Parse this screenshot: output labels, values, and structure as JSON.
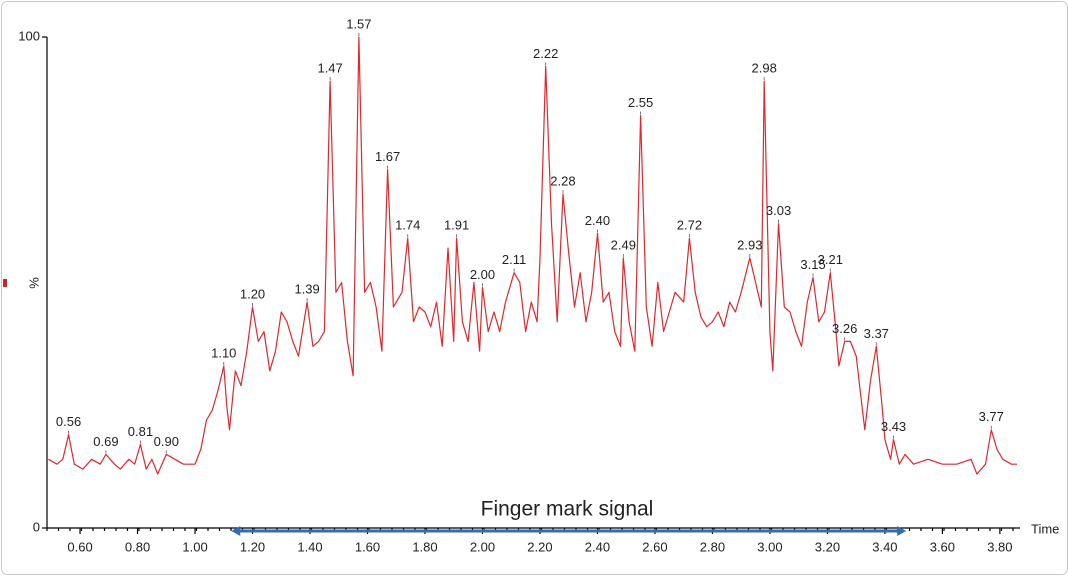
{
  "chart_data": {
    "type": "line",
    "xlabel": "Time",
    "ylabel": "%",
    "xlim": [
      0.485,
      3.87
    ],
    "ylim": [
      0,
      100
    ],
    "yticks": [
      0,
      100
    ],
    "xticks": [
      {
        "value": 0.6,
        "label": "0.60"
      },
      {
        "value": 0.8,
        "label": "0.80"
      },
      {
        "value": 1.0,
        "label": "1.00"
      },
      {
        "value": 1.2,
        "label": "1.20"
      },
      {
        "value": 1.4,
        "label": "1.40"
      },
      {
        "value": 1.6,
        "label": "1.60"
      },
      {
        "value": 1.8,
        "label": "1.80"
      },
      {
        "value": 2.0,
        "label": "2.00"
      },
      {
        "value": 2.2,
        "label": "2.20"
      },
      {
        "value": 2.4,
        "label": "2.40"
      },
      {
        "value": 2.6,
        "label": "2.60"
      },
      {
        "value": 2.8,
        "label": "2.80"
      },
      {
        "value": 3.0,
        "label": "3.00"
      },
      {
        "value": 3.2,
        "label": "3.20"
      },
      {
        "value": 3.4,
        "label": "3.40"
      },
      {
        "value": 3.6,
        "label": "3.60"
      },
      {
        "value": 3.8,
        "label": "3.80"
      }
    ],
    "series": [
      {
        "color": "#e3262b",
        "x": [
          0.49,
          0.52,
          0.54,
          0.56,
          0.58,
          0.61,
          0.64,
          0.67,
          0.69,
          0.72,
          0.74,
          0.77,
          0.79,
          0.81,
          0.83,
          0.85,
          0.87,
          0.9,
          0.93,
          0.96,
          1.0,
          1.02,
          1.04,
          1.06,
          1.08,
          1.1,
          1.11,
          1.12,
          1.14,
          1.16,
          1.18,
          1.2,
          1.22,
          1.24,
          1.26,
          1.28,
          1.3,
          1.32,
          1.34,
          1.36,
          1.39,
          1.41,
          1.43,
          1.45,
          1.47,
          1.49,
          1.51,
          1.53,
          1.55,
          1.57,
          1.59,
          1.61,
          1.63,
          1.65,
          1.67,
          1.69,
          1.72,
          1.74,
          1.76,
          1.78,
          1.8,
          1.82,
          1.84,
          1.86,
          1.88,
          1.9,
          1.91,
          1.93,
          1.95,
          1.97,
          1.99,
          2.0,
          2.02,
          2.04,
          2.06,
          2.08,
          2.11,
          2.13,
          2.15,
          2.17,
          2.19,
          2.2,
          2.22,
          2.24,
          2.26,
          2.28,
          2.3,
          2.32,
          2.34,
          2.36,
          2.38,
          2.4,
          2.42,
          2.44,
          2.46,
          2.48,
          2.49,
          2.51,
          2.53,
          2.55,
          2.57,
          2.59,
          2.61,
          2.63,
          2.65,
          2.67,
          2.7,
          2.72,
          2.74,
          2.76,
          2.78,
          2.8,
          2.82,
          2.84,
          2.86,
          2.88,
          2.9,
          2.93,
          2.95,
          2.97,
          2.98,
          3.0,
          3.01,
          3.03,
          3.05,
          3.07,
          3.09,
          3.11,
          3.13,
          3.15,
          3.17,
          3.19,
          3.21,
          3.23,
          3.24,
          3.26,
          3.28,
          3.3,
          3.32,
          3.33,
          3.35,
          3.37,
          3.39,
          3.4,
          3.42,
          3.43,
          3.45,
          3.47,
          3.5,
          3.55,
          3.6,
          3.65,
          3.7,
          3.72,
          3.75,
          3.77,
          3.79,
          3.81,
          3.84,
          3.86
        ],
        "values": [
          14,
          13,
          14,
          19,
          13,
          12,
          14,
          13,
          15,
          13,
          12,
          14,
          13,
          17,
          12,
          14,
          11,
          15,
          14,
          13,
          13,
          16,
          22,
          24,
          28,
          33,
          25,
          20,
          32,
          29,
          36,
          45,
          38,
          40,
          32,
          36,
          44,
          42,
          38,
          35,
          46,
          37,
          38,
          40,
          91,
          48,
          50,
          38,
          31,
          100,
          48,
          50,
          45,
          36,
          73,
          45,
          48,
          59,
          42,
          45,
          44,
          41,
          46,
          37,
          57,
          38,
          59,
          42,
          38,
          50,
          36,
          49,
          40,
          44,
          40,
          46,
          52,
          50,
          40,
          46,
          42,
          55,
          94,
          62,
          42,
          68,
          56,
          45,
          52,
          42,
          48,
          60,
          46,
          48,
          40,
          37,
          55,
          42,
          36,
          84,
          45,
          37,
          50,
          40,
          44,
          48,
          46,
          59,
          48,
          43,
          41,
          42,
          44,
          41,
          46,
          44,
          48,
          55,
          50,
          45,
          91,
          40,
          32,
          62,
          45,
          44,
          40,
          37,
          46,
          51,
          42,
          44,
          52,
          40,
          33,
          38,
          38,
          35,
          25,
          20,
          30,
          37,
          25,
          18,
          14,
          18,
          13,
          15,
          13,
          14,
          13,
          13,
          14,
          11,
          13,
          20,
          16,
          14,
          13,
          13
        ]
      }
    ],
    "peaks": {
      "x": [
        0.56,
        0.69,
        0.81,
        0.9,
        1.1,
        1.2,
        1.39,
        1.47,
        1.57,
        1.67,
        1.74,
        1.91,
        2.0,
        2.11,
        2.22,
        2.28,
        2.4,
        2.49,
        2.55,
        2.72,
        2.93,
        2.98,
        3.03,
        3.15,
        3.21,
        3.26,
        3.37,
        3.43,
        3.77
      ],
      "values": [
        19,
        15,
        17,
        15,
        33,
        45,
        46,
        91,
        100,
        73,
        59,
        59,
        49,
        52,
        94,
        68,
        60,
        55,
        84,
        59,
        55,
        91,
        62,
        51,
        52,
        38,
        37,
        18,
        20
      ],
      "value_labels": [
        "0.56",
        "0.69",
        "0.81",
        "0.90",
        "1.10",
        "1.20",
        "1.39",
        "1.47",
        "1.57",
        "1.67",
        "1.74",
        "1.91",
        "2.00",
        "2.11",
        "2.22",
        "2.28",
        "2.40",
        "2.49",
        "2.55",
        "2.72",
        "2.93",
        "2.98",
        "3.03",
        "3.15",
        "3.21",
        "3.26",
        "3.37",
        "3.43",
        "3.77"
      ]
    },
    "annotation": {
      "text": "Finger mark signal",
      "x": [
        1.14,
        3.46
      ],
      "color": "#2f6db5"
    }
  }
}
